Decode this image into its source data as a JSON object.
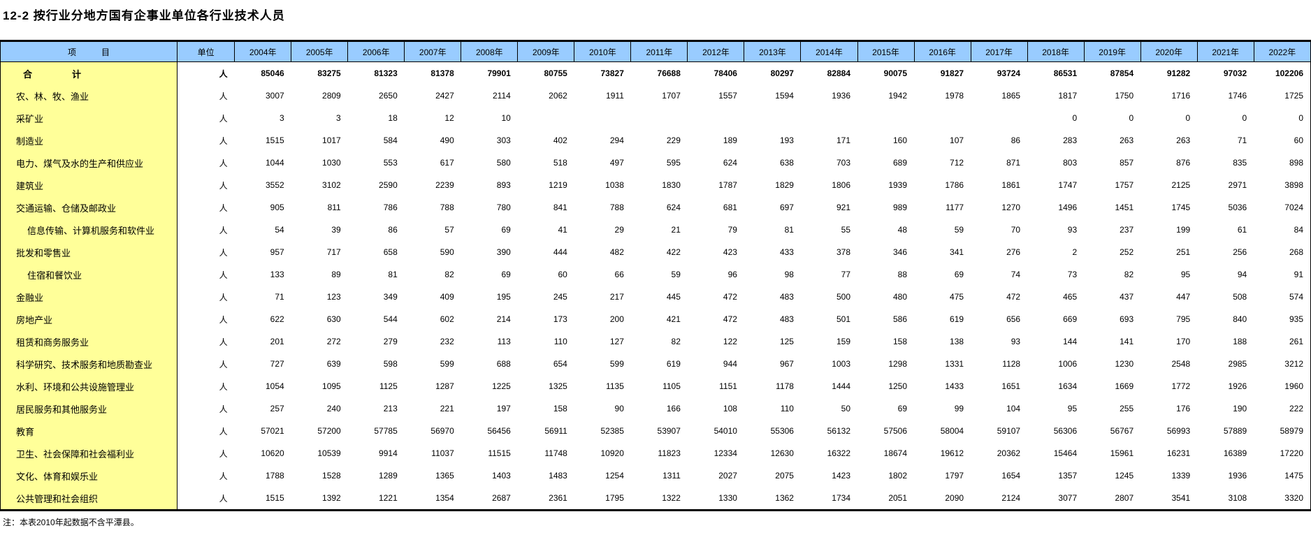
{
  "title": "12-2 按行业分地方国有企事业单位各行业技术人员",
  "note": "注：本表2010年起数据不含平潭县。",
  "colors": {
    "header_bg": "#99CCFF",
    "item_col_bg": "#FFFF99"
  },
  "table": {
    "item_header": "项　　　目",
    "unit_header": "单位",
    "years": [
      "2004年",
      "2005年",
      "2006年",
      "2007年",
      "2008年",
      "2009年",
      "2010年",
      "2011年",
      "2012年",
      "2013年",
      "2014年",
      "2015年",
      "2016年",
      "2017年",
      "2018年",
      "2019年",
      "2020年",
      "2021年",
      "2022年"
    ],
    "rows": [
      {
        "label": "合　　　　计",
        "unit": "人",
        "bold": true,
        "indent": false,
        "values": [
          85046,
          83275,
          81323,
          81378,
          79901,
          80755,
          73827,
          76688,
          78406,
          80297,
          82884,
          90075,
          91827,
          93724,
          86531,
          87854,
          91282,
          97032,
          102206
        ]
      },
      {
        "label": "农、林、牧、渔业",
        "unit": "人",
        "bold": false,
        "indent": false,
        "values": [
          3007,
          2809,
          2650,
          2427,
          2114,
          2062,
          1911,
          1707,
          1557,
          1594,
          1936,
          1942,
          1978,
          1865,
          1817,
          1750,
          1716,
          1746,
          1725
        ]
      },
      {
        "label": "采矿业",
        "unit": "人",
        "bold": false,
        "indent": false,
        "values": [
          3,
          3,
          18,
          12,
          10,
          "",
          "",
          "",
          "",
          "",
          "",
          "",
          "",
          "",
          0,
          0,
          0,
          0,
          0
        ]
      },
      {
        "label": "制造业",
        "unit": "人",
        "bold": false,
        "indent": false,
        "values": [
          1515,
          1017,
          584,
          490,
          303,
          402,
          294,
          229,
          189,
          193,
          171,
          160,
          107,
          86,
          283,
          263,
          263,
          71,
          60
        ]
      },
      {
        "label": "电力、煤气及水的生产和供应业",
        "unit": "人",
        "bold": false,
        "indent": false,
        "values": [
          1044,
          1030,
          553,
          617,
          580,
          518,
          497,
          595,
          624,
          638,
          703,
          689,
          712,
          871,
          803,
          857,
          876,
          835,
          898
        ]
      },
      {
        "label": "建筑业",
        "unit": "人",
        "bold": false,
        "indent": false,
        "values": [
          3552,
          3102,
          2590,
          2239,
          893,
          1219,
          1038,
          1830,
          1787,
          1829,
          1806,
          1939,
          1786,
          1861,
          1747,
          1757,
          2125,
          2971,
          3898
        ]
      },
      {
        "label": "交通运输、仓储及邮政业",
        "unit": "人",
        "bold": false,
        "indent": false,
        "values": [
          905,
          811,
          786,
          788,
          780,
          841,
          788,
          624,
          681,
          697,
          921,
          989,
          1177,
          1270,
          1496,
          1451,
          1745,
          5036,
          7024
        ]
      },
      {
        "label": "信息传输、计算机服务和软件业",
        "unit": "人",
        "bold": false,
        "indent": true,
        "values": [
          54,
          39,
          86,
          57,
          69,
          41,
          29,
          21,
          79,
          81,
          55,
          48,
          59,
          70,
          93,
          237,
          199,
          61,
          84
        ]
      },
      {
        "label": "批发和零售业",
        "unit": "人",
        "bold": false,
        "indent": false,
        "values": [
          957,
          717,
          658,
          590,
          390,
          444,
          482,
          422,
          423,
          433,
          378,
          346,
          341,
          276,
          2,
          252,
          251,
          256,
          268
        ]
      },
      {
        "label": "住宿和餐饮业",
        "unit": "人",
        "bold": false,
        "indent": true,
        "values": [
          133,
          89,
          81,
          82,
          69,
          60,
          66,
          59,
          96,
          98,
          77,
          88,
          69,
          74,
          73,
          82,
          95,
          94,
          91
        ]
      },
      {
        "label": "金融业",
        "unit": "人",
        "bold": false,
        "indent": false,
        "values": [
          71,
          123,
          349,
          409,
          195,
          245,
          217,
          445,
          472,
          483,
          500,
          480,
          475,
          472,
          465,
          437,
          447,
          508,
          574
        ]
      },
      {
        "label": "房地产业",
        "unit": "人",
        "bold": false,
        "indent": false,
        "values": [
          622,
          630,
          544,
          602,
          214,
          173,
          200,
          421,
          472,
          483,
          501,
          586,
          619,
          656,
          669,
          693,
          795,
          840,
          935
        ]
      },
      {
        "label": "租赁和商务服务业",
        "unit": "人",
        "bold": false,
        "indent": false,
        "values": [
          201,
          272,
          279,
          232,
          113,
          110,
          127,
          82,
          122,
          125,
          159,
          158,
          138,
          93,
          144,
          141,
          170,
          188,
          261
        ]
      },
      {
        "label": "科学研究、技术服务和地质勘查业",
        "unit": "人",
        "bold": false,
        "indent": false,
        "values": [
          727,
          639,
          598,
          599,
          688,
          654,
          599,
          619,
          944,
          967,
          1003,
          1298,
          1331,
          1128,
          1006,
          1230,
          2548,
          2985,
          3212
        ]
      },
      {
        "label": "水利、环境和公共设施管理业",
        "unit": "人",
        "bold": false,
        "indent": false,
        "values": [
          1054,
          1095,
          1125,
          1287,
          1225,
          1325,
          1135,
          1105,
          1151,
          1178,
          1444,
          1250,
          1433,
          1651,
          1634,
          1669,
          1772,
          1926,
          1960
        ]
      },
      {
        "label": "居民服务和其他服务业",
        "unit": "人",
        "bold": false,
        "indent": false,
        "values": [
          257,
          240,
          213,
          221,
          197,
          158,
          90,
          166,
          108,
          110,
          50,
          69,
          99,
          104,
          95,
          255,
          176,
          190,
          222
        ]
      },
      {
        "label": "教育",
        "unit": "人",
        "bold": false,
        "indent": false,
        "values": [
          57021,
          57200,
          57785,
          56970,
          56456,
          56911,
          52385,
          53907,
          54010,
          55306,
          56132,
          57506,
          58004,
          59107,
          56306,
          56767,
          56993,
          57889,
          58979
        ]
      },
      {
        "label": "卫生、社会保障和社会福利业",
        "unit": "人",
        "bold": false,
        "indent": false,
        "values": [
          10620,
          10539,
          9914,
          11037,
          11515,
          11748,
          10920,
          11823,
          12334,
          12630,
          16322,
          18674,
          19612,
          20362,
          15464,
          15961,
          16231,
          16389,
          17220
        ]
      },
      {
        "label": "文化、体育和娱乐业",
        "unit": "人",
        "bold": false,
        "indent": false,
        "values": [
          1788,
          1528,
          1289,
          1365,
          1403,
          1483,
          1254,
          1311,
          2027,
          2075,
          1423,
          1802,
          1797,
          1654,
          1357,
          1245,
          1339,
          1936,
          1475
        ]
      },
      {
        "label": "公共管理和社会组织",
        "unit": "人",
        "bold": false,
        "indent": false,
        "values": [
          1515,
          1392,
          1221,
          1354,
          2687,
          2361,
          1795,
          1322,
          1330,
          1362,
          1734,
          2051,
          2090,
          2124,
          3077,
          2807,
          3541,
          3108,
          3320
        ]
      }
    ]
  }
}
